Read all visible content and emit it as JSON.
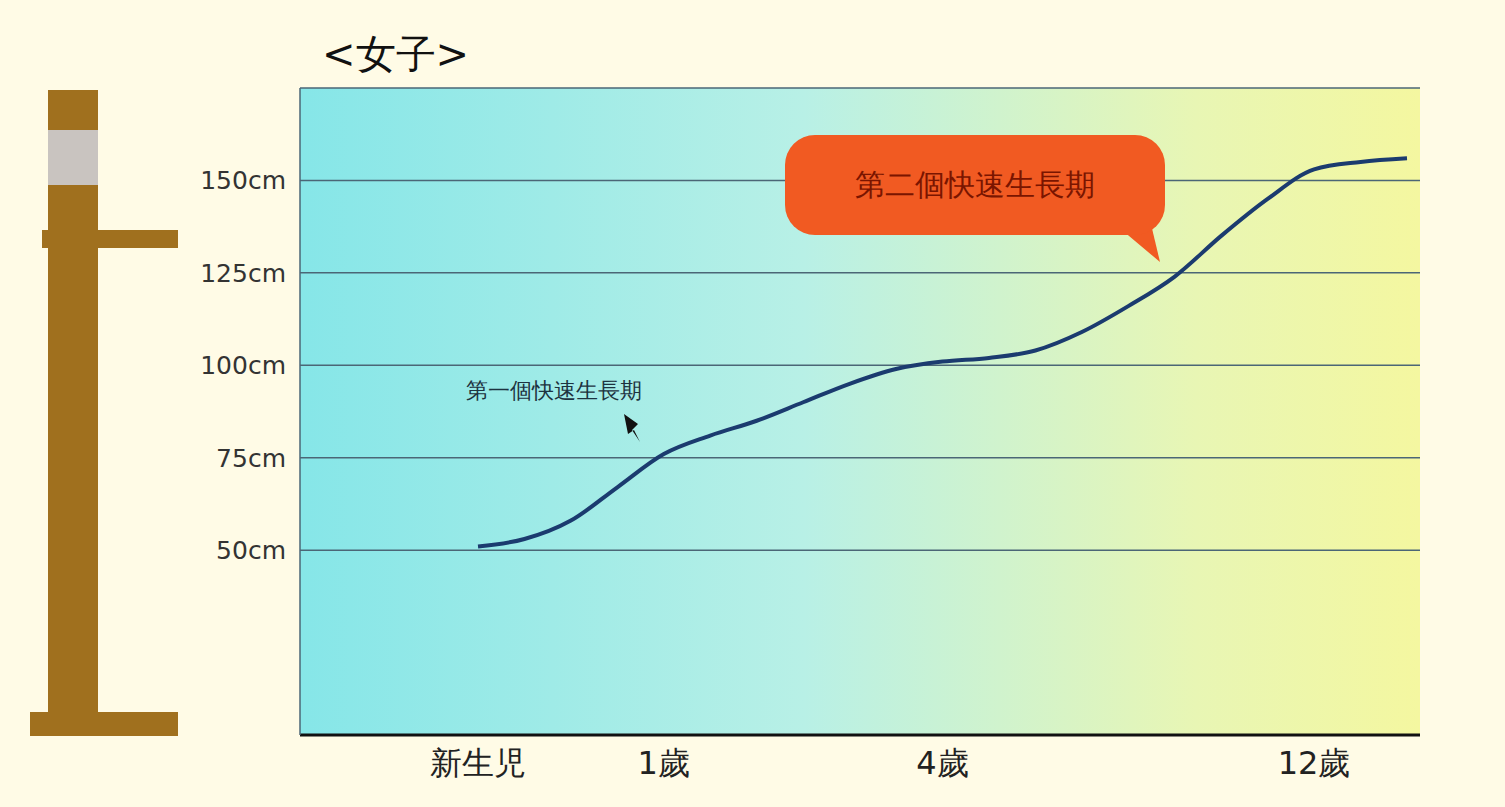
{
  "chart_data": {
    "type": "line",
    "title": "<女子>",
    "categories": [
      "新生児",
      null,
      null,
      null,
      "1歲",
      null,
      null,
      null,
      null,
      null,
      "4歲",
      null,
      null,
      null,
      null,
      null,
      null,
      null,
      "12歲",
      null,
      null
    ],
    "values": [
      51,
      53,
      58,
      67,
      76,
      81,
      85,
      90,
      95,
      99,
      101,
      102,
      104,
      109,
      116,
      124,
      135,
      145,
      153,
      155,
      156
    ],
    "color": "#1b3b6f",
    "ylim": [
      0,
      175
    ],
    "yticks": [
      {
        "value": 50,
        "label": "50cm"
      },
      {
        "value": 75,
        "label": "75cm"
      },
      {
        "value": 100,
        "label": "100cm"
      },
      {
        "value": 125,
        "label": "125cm"
      },
      {
        "value": 150,
        "label": "150cm"
      }
    ],
    "grid": true,
    "annotations": [
      "第一個快速生長期",
      "第二個快速生長期"
    ]
  }
}
